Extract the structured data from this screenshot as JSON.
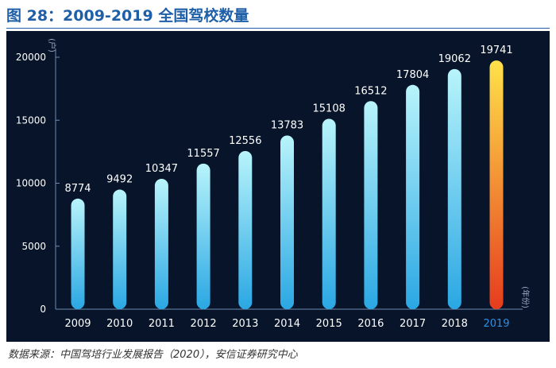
{
  "figure": {
    "title": "图 28：2009-2019 全国驾校数量",
    "source": "数据来源：中国驾培行业发展报告（2020），安信证券研究中心"
  },
  "chart_data": {
    "type": "bar",
    "title": "2009-2019 全国驾校数量",
    "categories": [
      "2009",
      "2010",
      "2011",
      "2012",
      "2013",
      "2014",
      "2015",
      "2016",
      "2017",
      "2018",
      "2019"
    ],
    "values": [
      8774,
      9492,
      10347,
      11557,
      12556,
      13783,
      15108,
      16512,
      17804,
      19062,
      19741
    ],
    "data_labels": [
      "8774",
      "9492",
      "10347",
      "11557",
      "12556",
      "13783",
      "15108",
      "16512",
      "17804",
      "19062",
      "19741"
    ],
    "y_ticks": [
      0,
      5000,
      10000,
      15000,
      20000
    ],
    "y_tick_labels": [
      "0",
      "5000",
      "10000",
      "15000",
      "20000"
    ],
    "ylim": [
      0,
      20000
    ],
    "ylabel": "(户)",
    "xlabel": "(年份)",
    "grid": false,
    "highlight_category": "2019",
    "colors": {
      "background": "#07142a",
      "axis": "#6f8bb0",
      "text": "#ffffff",
      "bar_top": "#b8f4fb",
      "bar_bottom": "#2aa7e3",
      "highlight_top": "#ffe24a",
      "highlight_bottom": "#e63c1e",
      "highlight_label": "#2f8fe0",
      "axis_title": "#9fb0c8"
    }
  }
}
